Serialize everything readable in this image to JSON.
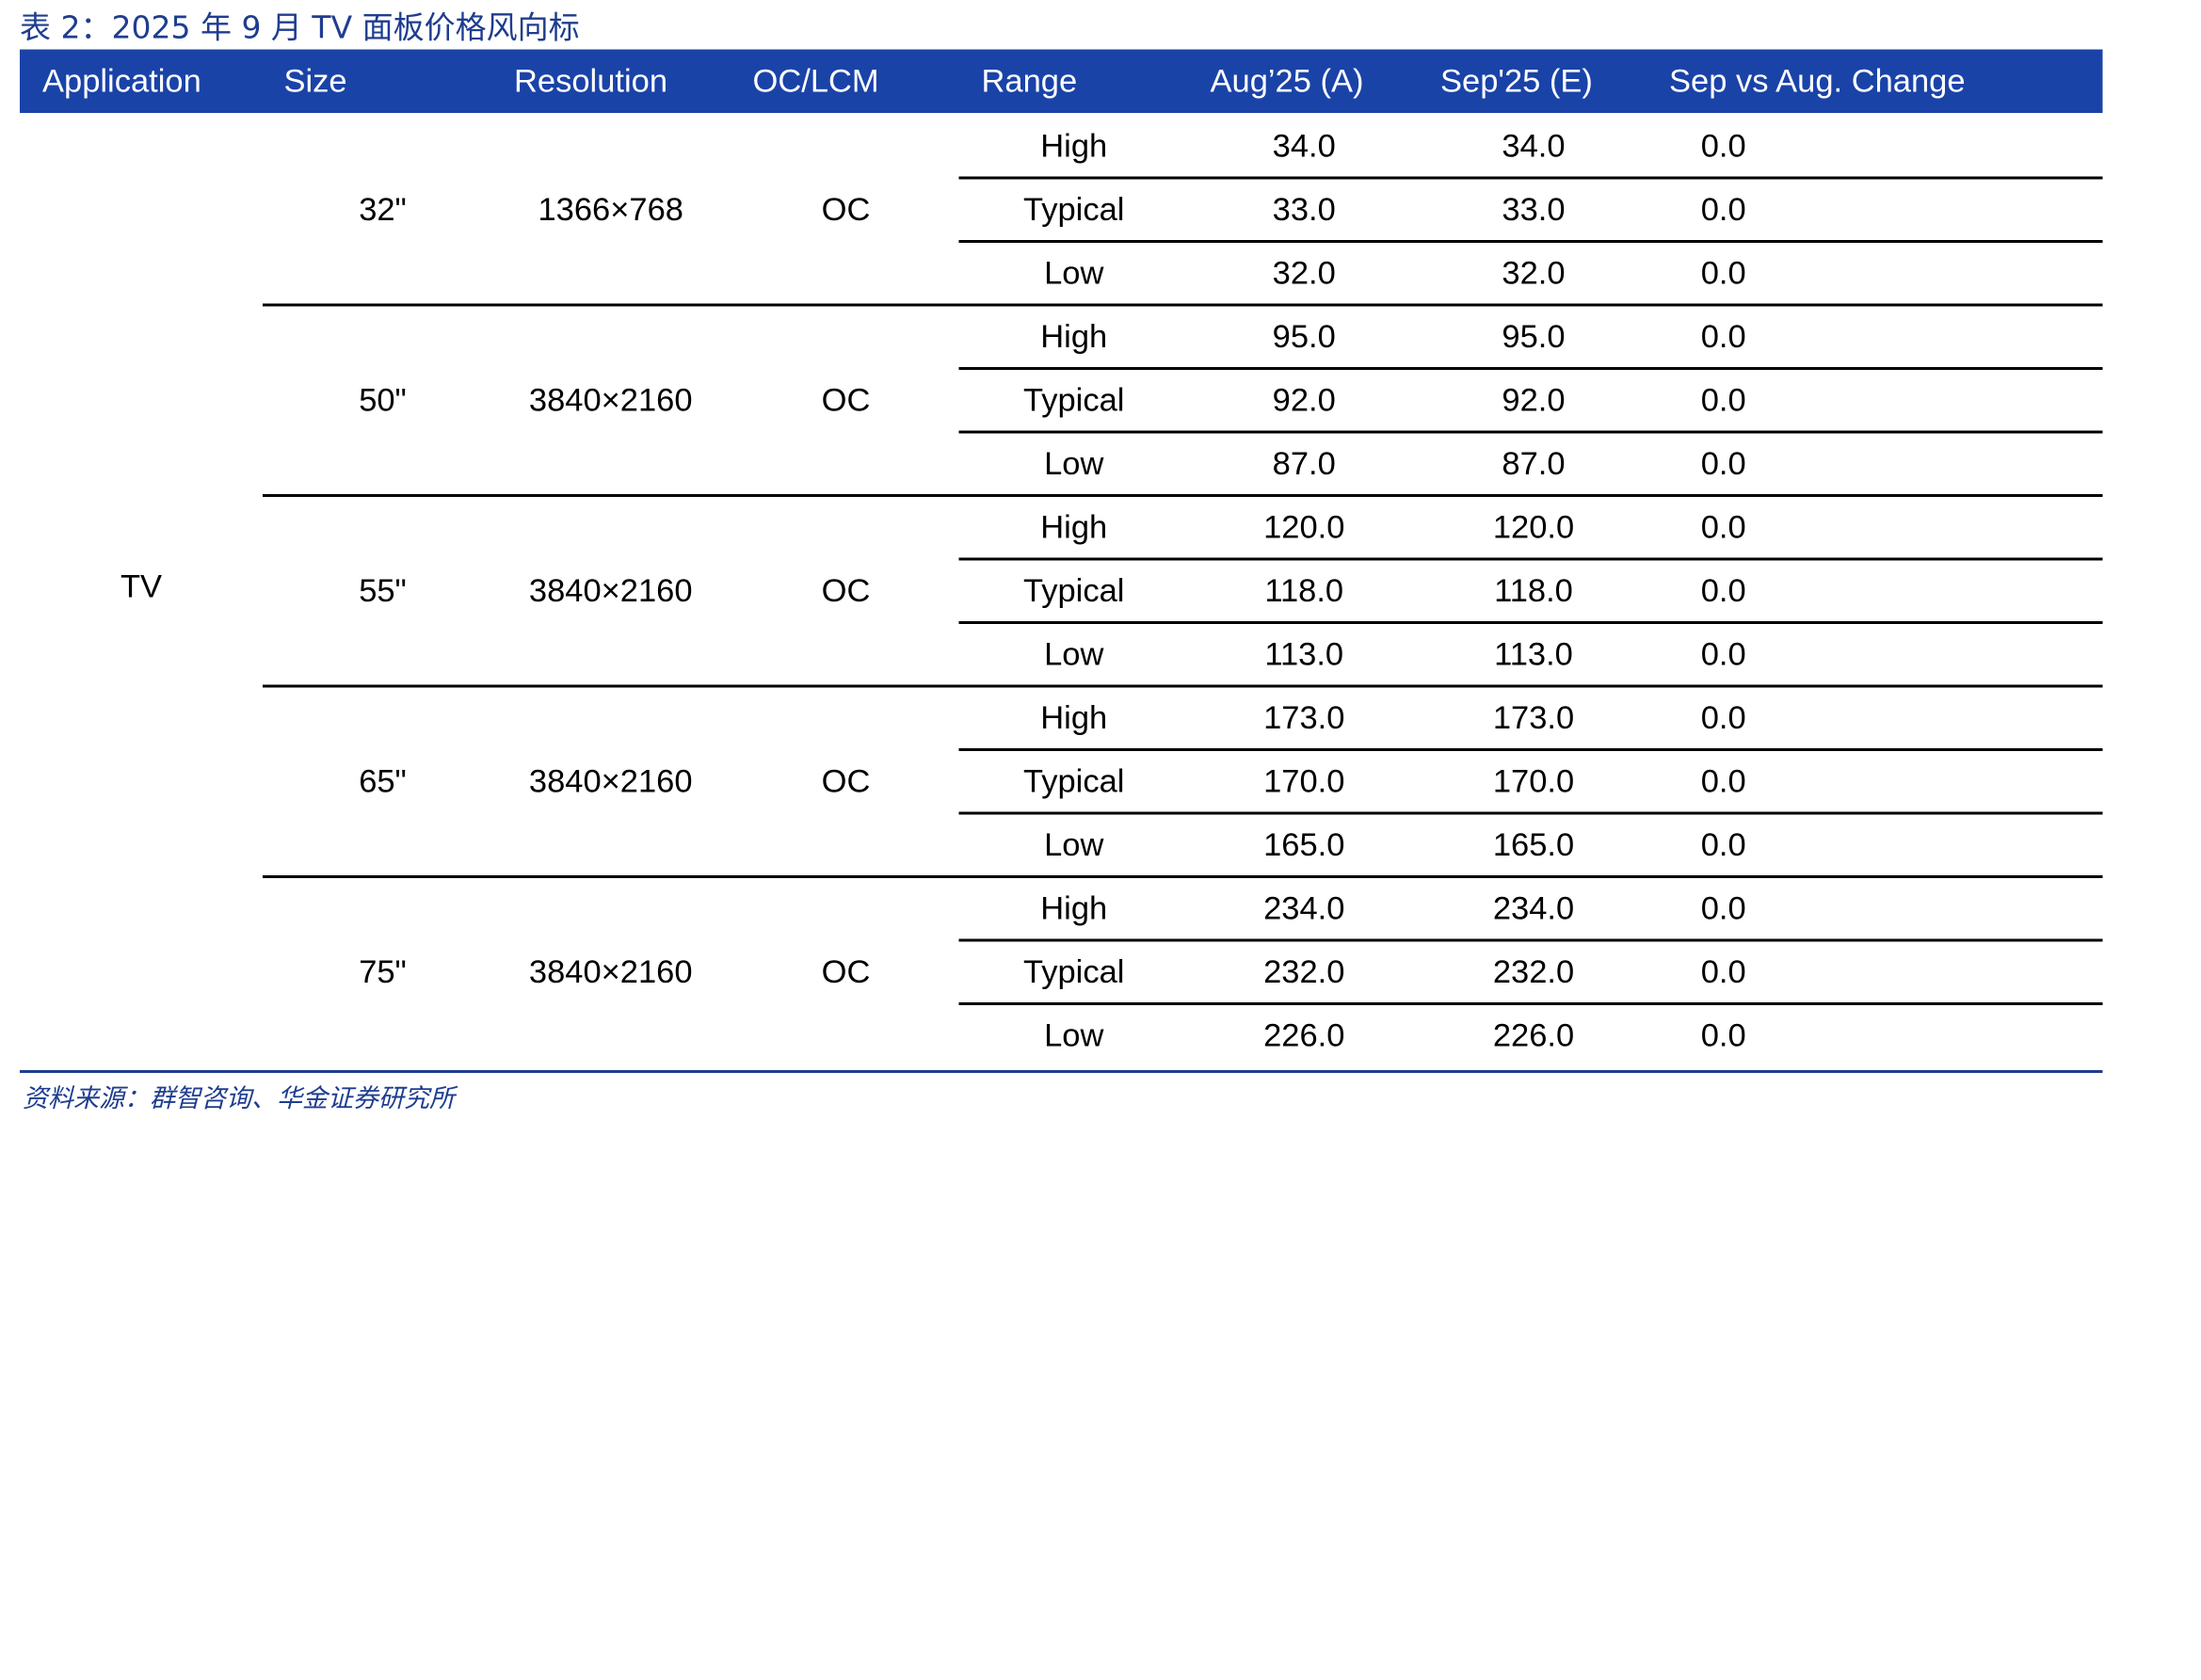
{
  "caption": "表 2：2025 年 9 月 TV 面板价格风向标",
  "source": "资料来源：群智咨询、华金证券研究所",
  "headers": {
    "application": "Application",
    "size": "Size",
    "resolution": "Resolution",
    "oc_lcm": "OC/LCM",
    "range": "Range",
    "aug": "Aug’25 (A)",
    "sep": "Sep'25 (E)",
    "change": "Sep vs Aug. Change"
  },
  "application": "TV",
  "groups": [
    {
      "size": "32\"",
      "resolution": "1366×768",
      "oc_lcm": "OC",
      "rows": [
        {
          "range": "High",
          "aug": "34.0",
          "sep": "34.0",
          "change": "0.0"
        },
        {
          "range": "Typical",
          "aug": "33.0",
          "sep": "33.0",
          "change": "0.0"
        },
        {
          "range": "Low",
          "aug": "32.0",
          "sep": "32.0",
          "change": "0.0"
        }
      ]
    },
    {
      "size": "50\"",
      "resolution": "3840×2160",
      "oc_lcm": "OC",
      "rows": [
        {
          "range": "High",
          "aug": "95.0",
          "sep": "95.0",
          "change": "0.0"
        },
        {
          "range": "Typical",
          "aug": "92.0",
          "sep": "92.0",
          "change": "0.0"
        },
        {
          "range": "Low",
          "aug": "87.0",
          "sep": "87.0",
          "change": "0.0"
        }
      ]
    },
    {
      "size": "55\"",
      "resolution": "3840×2160",
      "oc_lcm": "OC",
      "rows": [
        {
          "range": "High",
          "aug": "120.0",
          "sep": "120.0",
          "change": "0.0"
        },
        {
          "range": "Typical",
          "aug": "118.0",
          "sep": "118.0",
          "change": "0.0"
        },
        {
          "range": "Low",
          "aug": "113.0",
          "sep": "113.0",
          "change": "0.0"
        }
      ]
    },
    {
      "size": "65\"",
      "resolution": "3840×2160",
      "oc_lcm": "OC",
      "rows": [
        {
          "range": "High",
          "aug": "173.0",
          "sep": "173.0",
          "change": "0.0"
        },
        {
          "range": "Typical",
          "aug": "170.0",
          "sep": "170.0",
          "change": "0.0"
        },
        {
          "range": "Low",
          "aug": "165.0",
          "sep": "165.0",
          "change": "0.0"
        }
      ]
    },
    {
      "size": "75\"",
      "resolution": "3840×2160",
      "oc_lcm": "OC",
      "rows": [
        {
          "range": "High",
          "aug": "234.0",
          "sep": "234.0",
          "change": "0.0"
        },
        {
          "range": "Typical",
          "aug": "232.0",
          "sep": "232.0",
          "change": "0.0"
        },
        {
          "range": "Low",
          "aug": "226.0",
          "sep": "226.0",
          "change": "0.0"
        }
      ]
    }
  ]
}
